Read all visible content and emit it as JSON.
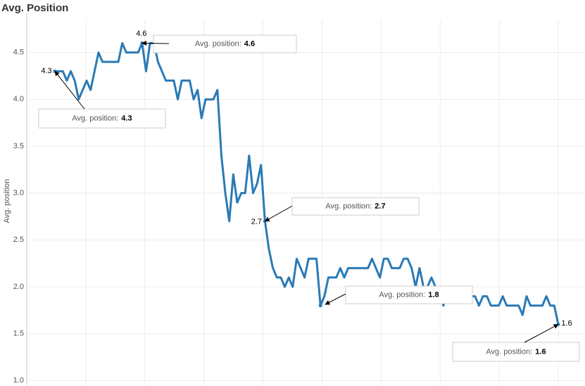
{
  "chart_data": {
    "type": "line",
    "title": "Avg. Position",
    "y_label": "Avg. position",
    "annotation_label": "Avg. position:",
    "color": "#2a7ab5",
    "grid": true,
    "categories": [
      null,
      null,
      null,
      null,
      null,
      null,
      null,
      null,
      null,
      null,
      null,
      null,
      null,
      null,
      null,
      null,
      null,
      null,
      null,
      null,
      null,
      null,
      null,
      null,
      null,
      null,
      null,
      null,
      null,
      null,
      null,
      null,
      null,
      null,
      null,
      null,
      null,
      null,
      null,
      null,
      null,
      null,
      null,
      null,
      null,
      null,
      null,
      null,
      null,
      null,
      null,
      null,
      null,
      null,
      null,
      null,
      null,
      null,
      null,
      null,
      null,
      null,
      null,
      null,
      null,
      null,
      null,
      null,
      null,
      null,
      null,
      null,
      null,
      null,
      null,
      null,
      null,
      null,
      null,
      null,
      null,
      null,
      null,
      null,
      null,
      null,
      null,
      null,
      null,
      null,
      null,
      null,
      null,
      null,
      null,
      null,
      null,
      null,
      null,
      null,
      null,
      null,
      null,
      null,
      null,
      null,
      null,
      null,
      null,
      null,
      null,
      null,
      null,
      null,
      null,
      null,
      null,
      null,
      null,
      null,
      null,
      null,
      null,
      null,
      null,
      null,
      null,
      null
    ],
    "values": [
      4.3,
      4.3,
      4.3,
      4.2,
      4.3,
      4.2,
      4.0,
      4.1,
      4.2,
      4.1,
      4.3,
      4.5,
      4.4,
      4.4,
      4.4,
      4.4,
      4.4,
      4.6,
      4.5,
      4.5,
      4.5,
      4.5,
      4.6,
      4.3,
      4.6,
      4.6,
      4.4,
      4.3,
      4.2,
      4.2,
      4.2,
      4.0,
      4.2,
      4.2,
      4.2,
      4.0,
      4.1,
      3.8,
      4.0,
      4.0,
      4.0,
      4.1,
      3.4,
      3.0,
      2.7,
      3.2,
      2.9,
      3.0,
      3.0,
      3.4,
      3.0,
      3.1,
      3.3,
      2.7,
      2.4,
      2.2,
      2.1,
      2.1,
      2.0,
      2.1,
      2.0,
      2.3,
      2.2,
      2.1,
      2.3,
      2.3,
      2.3,
      1.8,
      1.9,
      2.1,
      2.1,
      2.1,
      2.2,
      2.1,
      2.2,
      2.2,
      2.2,
      2.2,
      2.2,
      2.2,
      2.3,
      2.2,
      2.1,
      2.3,
      2.3,
      2.2,
      2.2,
      2.2,
      2.3,
      2.3,
      2.2,
      2.0,
      2.2,
      2.0,
      2.0,
      2.1,
      2.0,
      2.0,
      1.8,
      1.9,
      2.0,
      1.9,
      2.0,
      1.9,
      1.9,
      1.9,
      1.9,
      1.8,
      1.9,
      1.9,
      1.8,
      1.8,
      1.8,
      1.9,
      1.8,
      1.8,
      1.8,
      1.8,
      1.7,
      1.9,
      1.8,
      1.8,
      1.8,
      1.8,
      1.9,
      1.8,
      1.8,
      1.6
    ],
    "ylim": [
      0.95,
      4.85
    ],
    "yticks": [
      {
        "value": 1,
        "label": "1.0"
      },
      1.5,
      {
        "value": 2,
        "label": "2.0"
      },
      2.5,
      {
        "value": 3,
        "label": "3.0"
      },
      3.5,
      {
        "value": 4,
        "label": "4.0"
      },
      4.5
    ]
  }
}
